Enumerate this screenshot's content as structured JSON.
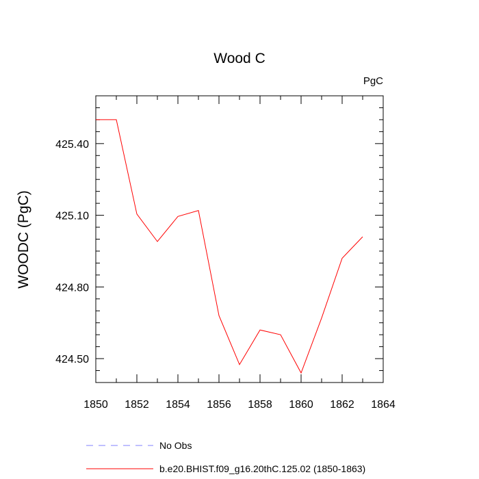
{
  "chart_data": {
    "type": "line",
    "title": "Wood C",
    "unit_label": "PgC",
    "ylabel": "WOODC  (PgC)",
    "xlabel": "",
    "xlim": [
      1850,
      1864
    ],
    "ylim": [
      424.4,
      425.6
    ],
    "x_ticks": [
      {
        "value": 1850,
        "label": "1850"
      },
      {
        "value": 1852,
        "label": "1852"
      },
      {
        "value": 1854,
        "label": "1854"
      },
      {
        "value": 1856,
        "label": "1856"
      },
      {
        "value": 1858,
        "label": "1858"
      },
      {
        "value": 1860,
        "label": "1860"
      },
      {
        "value": 1862,
        "label": "1862"
      },
      {
        "value": 1864,
        "label": "1864"
      }
    ],
    "y_ticks": [
      {
        "value": 424.5,
        "label": "424.50"
      },
      {
        "value": 424.8,
        "label": "424.80"
      },
      {
        "value": 425.1,
        "label": "425.10"
      },
      {
        "value": 425.4,
        "label": "425.40"
      }
    ],
    "y_minor_step": 0.05,
    "x_minor_step": 1,
    "grid": false,
    "legend_position": "bottom",
    "series": [
      {
        "name": "b.e20.BHIST.f09_g16.20thC.125.02 (1850-1863)",
        "color": "#ff0000",
        "style": "solid",
        "x": [
          1850,
          1851,
          1852,
          1853,
          1854,
          1855,
          1856,
          1857,
          1858,
          1859,
          1860,
          1861,
          1862,
          1863
        ],
        "y": [
          425.5,
          425.5,
          425.105,
          424.99,
          425.095,
          425.12,
          424.68,
          424.475,
          424.62,
          424.6,
          424.44,
          424.67,
          424.92,
          425.01
        ]
      }
    ],
    "legend": [
      {
        "label": "No Obs",
        "color": "#8080ff",
        "style": "dashed"
      },
      {
        "label": "b.e20.BHIST.f09_g16.20thC.125.02 (1850-1863)",
        "color": "#ff0000",
        "style": "solid"
      }
    ]
  }
}
